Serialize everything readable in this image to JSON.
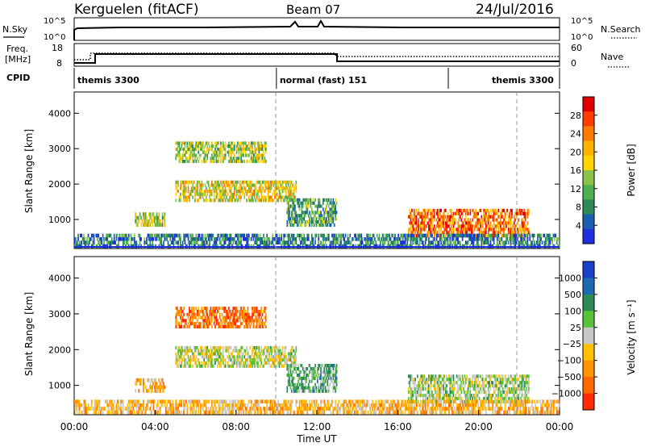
{
  "header": {
    "station": "Kerguelen (fitACF)",
    "beam": "Beam 07",
    "date": "24/Jul/2016"
  },
  "strip_panels": {
    "nsky": {
      "label": "N.Sky",
      "ticks": [
        "10^5",
        "10^0"
      ],
      "right_label": "N.Search",
      "right_ticks": [
        "10^5",
        "10^0"
      ]
    },
    "freq": {
      "label_top": "Freq.",
      "label_bottom": "[MHz]",
      "ticks": [
        "18",
        "8"
      ],
      "right_label": "Nave",
      "right_ticks": [
        "60",
        "0"
      ]
    },
    "cpid": {
      "label": "CPID",
      "segments": [
        {
          "name": "themis 3300",
          "start_hour": 0,
          "end_hour": 10
        },
        {
          "name": "normal (fast) 151",
          "start_hour": 10,
          "end_hour": 18.5
        },
        {
          "name": "themis 3300",
          "start_hour": 18.5,
          "end_hour": 24
        }
      ]
    }
  },
  "chart_data": [
    {
      "type": "heatmap",
      "name": "power",
      "ylabel": "Slant Range [km]",
      "ylim": [
        180,
        4600
      ],
      "yticks": [
        "4000",
        "3000",
        "2000",
        "1000"
      ],
      "colorbar": {
        "label": "Power [dB]",
        "ticks": [
          "28",
          "24",
          "20",
          "16",
          "12",
          "8",
          "4"
        ],
        "colors": [
          "#1f2fe0",
          "#1a5fb0",
          "#2e8b57",
          "#4caf50",
          "#8bc34a",
          "#ffd400",
          "#ffb300",
          "#ff7a00",
          "#ff3d00",
          "#e00000"
        ]
      },
      "regions": [
        {
          "t0": 5.0,
          "t1": 9.5,
          "r0": 2600,
          "r1": 3200,
          "level": 0.45
        },
        {
          "t0": 5.0,
          "t1": 11.0,
          "r0": 1500,
          "r1": 2100,
          "level": 0.55
        },
        {
          "t0": 3.0,
          "t1": 4.5,
          "r0": 800,
          "r1": 1200,
          "level": 0.5
        },
        {
          "t0": 10.5,
          "t1": 13.0,
          "r0": 800,
          "r1": 1600,
          "level": 0.3
        },
        {
          "t0": 16.5,
          "t1": 22.5,
          "r0": 500,
          "r1": 1300,
          "level": 0.8
        },
        {
          "t0": 0.0,
          "t1": 24.0,
          "r0": 200,
          "r1": 600,
          "level": 0.2
        }
      ]
    },
    {
      "type": "heatmap",
      "name": "velocity",
      "ylabel": "Slant Range [km]",
      "xlabel": "Time UT",
      "ylim": [
        180,
        4600
      ],
      "yticks": [
        "4000",
        "3000",
        "2000",
        "1000"
      ],
      "xticks": [
        "00:00",
        "04:00",
        "08:00",
        "12:00",
        "16:00",
        "20:00",
        "00:00"
      ],
      "colorbar": {
        "label": "Velocity [m s⁻¹]",
        "ticks": [
          "1000",
          "500",
          "100",
          "25",
          "−25",
          "−100",
          "−500",
          "−1000"
        ],
        "colors": [
          "#1a3fc8",
          "#1e6ab0",
          "#2e8b57",
          "#57c23a",
          "#c8c8c8",
          "#ffc000",
          "#ff9500",
          "#ff6a00",
          "#ff2a00"
        ]
      },
      "regions": [
        {
          "t0": 5.0,
          "t1": 9.5,
          "r0": 2600,
          "r1": 3200,
          "level": -0.7
        },
        {
          "t0": 5.0,
          "t1": 11.0,
          "r0": 1500,
          "r1": 2100,
          "level": 0.0
        },
        {
          "t0": 3.0,
          "t1": 4.5,
          "r0": 800,
          "r1": 1200,
          "level": -0.4
        },
        {
          "t0": 10.5,
          "t1": 13.0,
          "r0": 800,
          "r1": 1600,
          "level": 0.3
        },
        {
          "t0": 16.5,
          "t1": 22.5,
          "r0": 500,
          "r1": 1300,
          "level": 0.1
        },
        {
          "t0": 0.0,
          "t1": 24.0,
          "r0": 200,
          "r1": 600,
          "level": -0.3
        }
      ]
    }
  ]
}
